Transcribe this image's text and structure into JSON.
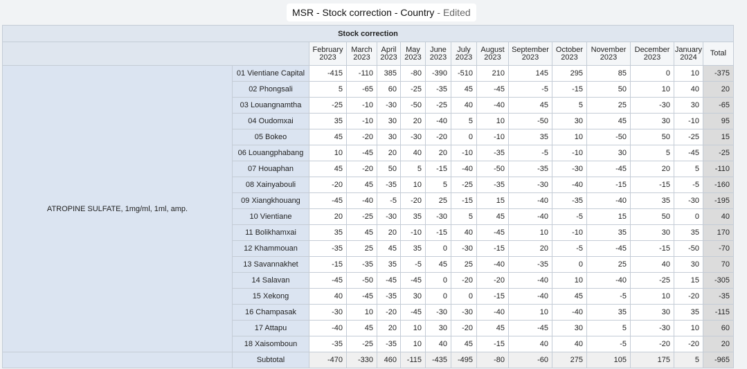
{
  "header": {
    "title": "MSR - Stock correction - Country",
    "status": "- Edited"
  },
  "table": {
    "section_title": "Stock correction",
    "months": [
      [
        "February",
        "2023"
      ],
      [
        "March",
        "2023"
      ],
      [
        "April",
        "2023"
      ],
      [
        "May",
        "2023"
      ],
      [
        "June",
        "2023"
      ],
      [
        "July",
        "2023"
      ],
      [
        "August",
        "2023"
      ],
      [
        "September",
        "2023"
      ],
      [
        "October",
        "2023"
      ],
      [
        "November",
        "2023"
      ],
      [
        "December",
        "2023"
      ],
      [
        "January",
        "2024"
      ]
    ],
    "total_label": "Total",
    "product": "ATROPINE SULFATE, 1mg/ml, 1ml, amp.",
    "rows": [
      {
        "region": "01 Vientiane Capital",
        "values": [
          "-415",
          "-110",
          "385",
          "-80",
          "-390",
          "-510",
          "210",
          "145",
          "295",
          "85",
          "0",
          "10"
        ],
        "total": "-375"
      },
      {
        "region": "02 Phongsali",
        "values": [
          "5",
          "-65",
          "60",
          "-25",
          "-35",
          "45",
          "-45",
          "-5",
          "-15",
          "50",
          "10",
          "40"
        ],
        "total": "20"
      },
      {
        "region": "03 Louangnamtha",
        "values": [
          "-25",
          "-10",
          "-30",
          "-50",
          "-25",
          "40",
          "-40",
          "45",
          "5",
          "25",
          "-30",
          "30"
        ],
        "total": "-65"
      },
      {
        "region": "04 Oudomxai",
        "values": [
          "35",
          "-10",
          "30",
          "20",
          "-40",
          "5",
          "10",
          "-50",
          "30",
          "45",
          "30",
          "-10"
        ],
        "total": "95"
      },
      {
        "region": "05 Bokeo",
        "values": [
          "45",
          "-20",
          "30",
          "-30",
          "-20",
          "0",
          "-10",
          "35",
          "10",
          "-50",
          "50",
          "-25"
        ],
        "total": "15"
      },
      {
        "region": "06 Louangphabang",
        "values": [
          "10",
          "-45",
          "20",
          "40",
          "20",
          "-10",
          "-35",
          "-5",
          "-10",
          "30",
          "5",
          "-45"
        ],
        "total": "-25"
      },
      {
        "region": "07 Houaphan",
        "values": [
          "45",
          "-20",
          "50",
          "5",
          "-15",
          "-40",
          "-50",
          "-35",
          "-30",
          "-45",
          "20",
          "5"
        ],
        "total": "-110"
      },
      {
        "region": "08 Xainyabouli",
        "values": [
          "-20",
          "45",
          "-35",
          "10",
          "5",
          "-25",
          "-35",
          "-30",
          "-40",
          "-15",
          "-15",
          "-5"
        ],
        "total": "-160"
      },
      {
        "region": "09 Xiangkhouang",
        "values": [
          "-45",
          "-40",
          "-5",
          "-20",
          "25",
          "-15",
          "15",
          "-40",
          "-35",
          "-40",
          "35",
          "-30"
        ],
        "total": "-195"
      },
      {
        "region": "10 Vientiane",
        "values": [
          "20",
          "-25",
          "-30",
          "35",
          "-30",
          "5",
          "45",
          "-40",
          "-5",
          "15",
          "50",
          "0"
        ],
        "total": "40"
      },
      {
        "region": "11 Bolikhamxai",
        "values": [
          "35",
          "45",
          "20",
          "-10",
          "-15",
          "40",
          "-45",
          "10",
          "-10",
          "35",
          "30",
          "35"
        ],
        "total": "170"
      },
      {
        "region": "12 Khammouan",
        "values": [
          "-35",
          "25",
          "45",
          "35",
          "0",
          "-30",
          "-15",
          "20",
          "-5",
          "-45",
          "-15",
          "-50"
        ],
        "total": "-70"
      },
      {
        "region": "13 Savannakhet",
        "values": [
          "-15",
          "-35",
          "35",
          "-5",
          "45",
          "25",
          "-40",
          "-35",
          "0",
          "25",
          "40",
          "30"
        ],
        "total": "70"
      },
      {
        "region": "14 Salavan",
        "values": [
          "-45",
          "-50",
          "-45",
          "-45",
          "0",
          "-20",
          "-20",
          "-40",
          "10",
          "-40",
          "-25",
          "15"
        ],
        "total": "-305"
      },
      {
        "region": "15 Xekong",
        "values": [
          "40",
          "-45",
          "-35",
          "30",
          "0",
          "0",
          "-15",
          "-40",
          "45",
          "-5",
          "10",
          "-20"
        ],
        "total": "-35"
      },
      {
        "region": "16 Champasak",
        "values": [
          "-30",
          "10",
          "-20",
          "-45",
          "-30",
          "-30",
          "-40",
          "10",
          "-40",
          "35",
          "30",
          "35"
        ],
        "total": "-115"
      },
      {
        "region": "17 Attapu",
        "values": [
          "-40",
          "45",
          "20",
          "10",
          "30",
          "-20",
          "45",
          "-45",
          "30",
          "5",
          "-30",
          "10"
        ],
        "total": "60"
      },
      {
        "region": "18 Xaisomboun",
        "values": [
          "-35",
          "-25",
          "-35",
          "10",
          "40",
          "45",
          "-15",
          "40",
          "40",
          "-5",
          "-20",
          "-20"
        ],
        "total": "20"
      }
    ],
    "subtotal": {
      "label": "Subtotal",
      "values": [
        "-470",
        "-330",
        "460",
        "-115",
        "-435",
        "-495",
        "-80",
        "-60",
        "275",
        "105",
        "175",
        "5"
      ],
      "total": "-965"
    }
  }
}
